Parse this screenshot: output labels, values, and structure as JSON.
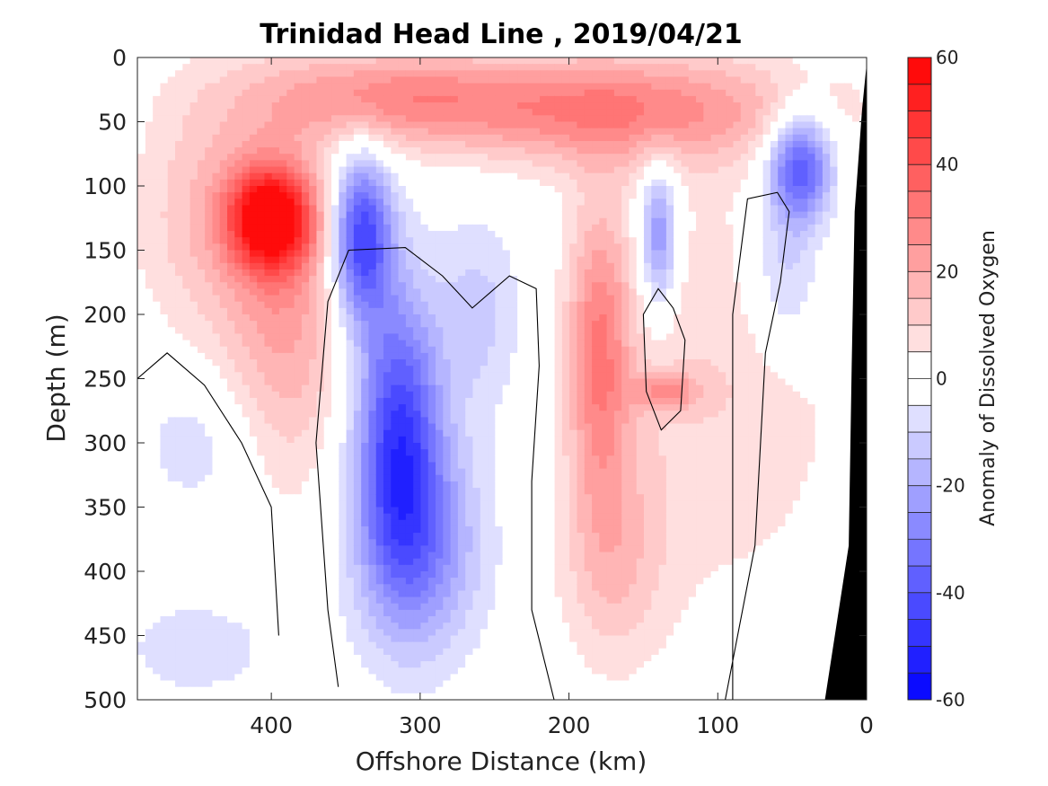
{
  "chart_data": {
    "type": "heatmap",
    "title": "Trinidad Head Line , 2019/04/21",
    "xlabel": "Offshore Distance (km)",
    "ylabel": "Depth (m)",
    "x_reversed": true,
    "xlim": [
      490,
      0
    ],
    "ylim": [
      0,
      500
    ],
    "y_reversed": true,
    "x_ticks": [
      400,
      300,
      200,
      100,
      0
    ],
    "y_ticks": [
      0,
      50,
      100,
      150,
      200,
      250,
      300,
      350,
      400,
      450,
      500
    ],
    "colorbar": {
      "label": "Anomaly of Dissolved Oxygen",
      "range": [
        -60,
        60
      ],
      "step": 5,
      "ticks": [
        60,
        40,
        20,
        0,
        -20,
        -40,
        -60
      ],
      "low_color": "#0000ff",
      "high_color": "#ff0000",
      "mid_color": "#ffffff"
    },
    "features": [
      {
        "x": 400,
        "depth": 125,
        "anomaly": 55,
        "sx": 20,
        "sy": 28
      },
      {
        "x": 390,
        "depth": 200,
        "anomaly": 20,
        "sx": 28,
        "sy": 90
      },
      {
        "x": 340,
        "depth": 140,
        "anomaly": -45,
        "sx": 14,
        "sy": 45
      },
      {
        "x": 315,
        "depth": 290,
        "anomaly": -42,
        "sx": 20,
        "sy": 80
      },
      {
        "x": 300,
        "depth": 380,
        "anomaly": -25,
        "sx": 30,
        "sy": 60
      },
      {
        "x": 260,
        "depth": 200,
        "anomaly": -12,
        "sx": 20,
        "sy": 55
      },
      {
        "x": 175,
        "depth": 40,
        "anomaly": 30,
        "sx": 90,
        "sy": 30
      },
      {
        "x": 180,
        "depth": 230,
        "anomaly": 28,
        "sx": 15,
        "sy": 80
      },
      {
        "x": 170,
        "depth": 390,
        "anomaly": 14,
        "sx": 25,
        "sy": 60
      },
      {
        "x": 140,
        "depth": 140,
        "anomaly": -28,
        "sx": 9,
        "sy": 40
      },
      {
        "x": 45,
        "depth": 85,
        "anomaly": -42,
        "sx": 15,
        "sy": 30
      },
      {
        "x": 55,
        "depth": 170,
        "anomaly": -15,
        "sx": 18,
        "sy": 45
      },
      {
        "x": 330,
        "depth": 30,
        "anomaly": 22,
        "sx": 60,
        "sy": 25
      },
      {
        "x": 440,
        "depth": 120,
        "anomaly": 15,
        "sx": 35,
        "sy": 70
      },
      {
        "x": 100,
        "depth": 250,
        "anomaly": 10,
        "sx": 60,
        "sy": 120
      },
      {
        "x": 450,
        "depth": 300,
        "anomaly": -8,
        "sx": 30,
        "sy": 40
      },
      {
        "x": 450,
        "depth": 460,
        "anomaly": -8,
        "sx": 40,
        "sy": 30
      },
      {
        "x": 135,
        "depth": 260,
        "anomaly": 20,
        "sx": 15,
        "sy": 10
      }
    ],
    "zero_contours": [
      [
        [
          355,
          490
        ],
        [
          362,
          430
        ],
        [
          370,
          300
        ],
        [
          362,
          190
        ],
        [
          348,
          150
        ],
        [
          310,
          148
        ],
        [
          285,
          170
        ],
        [
          265,
          195
        ],
        [
          250,
          180
        ],
        [
          240,
          170
        ],
        [
          222,
          180
        ],
        [
          220,
          240
        ],
        [
          225,
          330
        ],
        [
          225,
          430
        ],
        [
          210,
          500
        ]
      ],
      [
        [
          130,
          195
        ],
        [
          140,
          180
        ],
        [
          150,
          200
        ],
        [
          148,
          260
        ],
        [
          138,
          290
        ],
        [
          125,
          275
        ],
        [
          122,
          220
        ],
        [
          130,
          195
        ]
      ],
      [
        [
          95,
          500
        ],
        [
          75,
          380
        ],
        [
          68,
          230
        ],
        [
          58,
          175
        ],
        [
          52,
          120
        ],
        [
          60,
          105
        ],
        [
          80,
          110
        ],
        [
          90,
          200
        ],
        [
          90,
          300
        ],
        [
          90,
          500
        ]
      ],
      [
        [
          490,
          250
        ],
        [
          470,
          230
        ],
        [
          445,
          255
        ],
        [
          420,
          300
        ],
        [
          400,
          350
        ],
        [
          395,
          450
        ]
      ]
    ],
    "land_polygon": [
      [
        0,
        5
      ],
      [
        0,
        500
      ],
      [
        28,
        500
      ],
      [
        12,
        380
      ],
      [
        10,
        240
      ],
      [
        8,
        120
      ],
      [
        3,
        40
      ],
      [
        0,
        5
      ]
    ]
  }
}
